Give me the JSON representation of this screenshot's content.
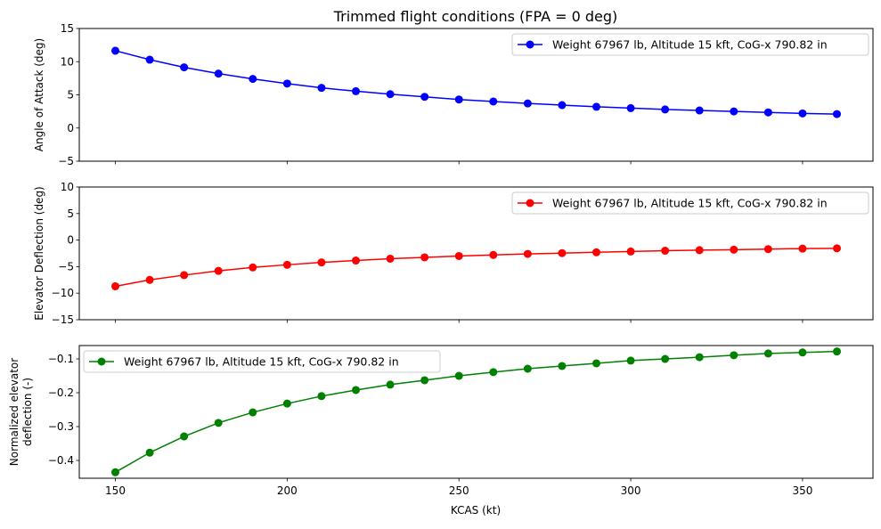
{
  "chart_data": {
    "title": "Trimmed flight conditions (FPA = 0 deg)",
    "xlabel": "KCAS (kt)",
    "xlim": [
      139.5,
      370.5
    ],
    "xticks": [
      150,
      200,
      250,
      300,
      350
    ],
    "x": [
      150,
      160,
      170,
      180,
      190,
      200,
      210,
      220,
      230,
      240,
      250,
      260,
      270,
      280,
      290,
      300,
      310,
      320,
      330,
      340,
      350,
      360
    ],
    "subplots": [
      {
        "type": "line",
        "ylabel": "Angle of Attack (deg)",
        "ylim": [
          -5,
          15
        ],
        "yticks": [
          -5,
          0,
          5,
          10,
          15
        ],
        "ytick_labels": [
          "−5",
          "0",
          "5",
          "10",
          "15"
        ],
        "legend_placement": "upper right",
        "series": [
          {
            "name": "Weight 67967 lb, Altitude 15 kft, CoG-x 790.82 in",
            "color": "#0000ff",
            "values": [
              11.65,
              10.3,
              9.15,
              8.2,
              7.4,
              6.7,
              6.05,
              5.55,
              5.1,
              4.7,
              4.3,
              4.0,
              3.7,
              3.45,
              3.2,
              3.0,
              2.8,
              2.65,
              2.5,
              2.35,
              2.2,
              2.1
            ]
          }
        ]
      },
      {
        "type": "line",
        "ylabel": "Elevator Deflection (deg)",
        "ylim": [
          -15,
          10
        ],
        "yticks": [
          -15,
          -10,
          -5,
          0,
          5,
          10
        ],
        "ytick_labels": [
          "−15",
          "−10",
          "−5",
          "0",
          "5",
          "10"
        ],
        "legend_placement": "upper right",
        "series": [
          {
            "name": "Weight 67967 lb, Altitude 15 kft, CoG-x 790.82 in",
            "color": "#ff0000",
            "values": [
              -8.7,
              -7.5,
              -6.6,
              -5.8,
              -5.15,
              -4.65,
              -4.2,
              -3.85,
              -3.5,
              -3.25,
              -3.0,
              -2.8,
              -2.6,
              -2.45,
              -2.3,
              -2.15,
              -2.0,
              -1.9,
              -1.8,
              -1.7,
              -1.6,
              -1.55
            ]
          }
        ]
      },
      {
        "type": "line",
        "ylabel": "Normalized elevator\ndeflection (-)",
        "ylim": [
          -0.4526,
          -0.0605
        ],
        "yticks": [
          -0.4,
          -0.3,
          -0.2,
          -0.1
        ],
        "ytick_labels": [
          "−0.4",
          "−0.3",
          "−0.2",
          "−0.1"
        ],
        "legend_placement": "upper left",
        "series": [
          {
            "name": "Weight 67967 lb, Altitude 15 kft, CoG-x 790.82 in",
            "color": "#008000",
            "values": [
              -0.435,
              -0.377,
              -0.329,
              -0.289,
              -0.258,
              -0.232,
              -0.21,
              -0.192,
              -0.176,
              -0.163,
              -0.15,
              -0.139,
              -0.129,
              -0.121,
              -0.113,
              -0.105,
              -0.1,
              -0.095,
              -0.089,
              -0.084,
              -0.081,
              -0.078
            ]
          }
        ]
      }
    ],
    "grid": false
  }
}
